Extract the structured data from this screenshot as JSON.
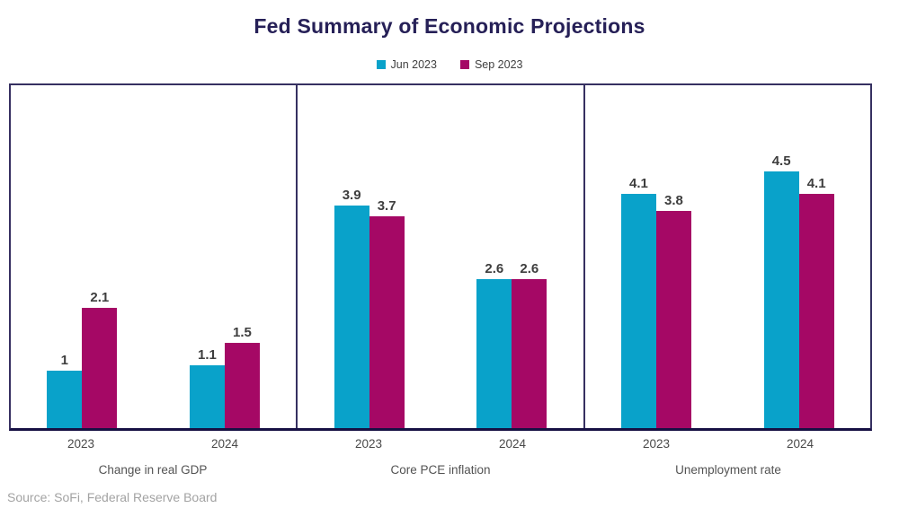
{
  "title": "Fed Summary of Economic Projections",
  "source": "Source: SoFi, Federal Reserve Board",
  "colors": {
    "series_jun": "#09a2ca",
    "series_sep": "#a50865",
    "border_navy": "#363061",
    "axis_navy": "#161043",
    "title_navy": "#262057",
    "label_gray": "#3e3e3e"
  },
  "legend": [
    {
      "label": "Jun 2023",
      "color": "#09a2ca"
    },
    {
      "label": "Sep 2023",
      "color": "#a50865"
    }
  ],
  "chart_data": {
    "type": "bar",
    "grouped": true,
    "grid": false,
    "legend_position": "top",
    "ylim": [
      0,
      6
    ],
    "group_centers_pct": [
      25,
      75
    ],
    "panels": [
      {
        "title": "Change in real GDP",
        "categories": [
          "2023",
          "2024"
        ],
        "series": [
          {
            "name": "Jun 2023",
            "values": [
              1,
              1.1
            ],
            "labels": [
              "1",
              "1.1"
            ]
          },
          {
            "name": "Sep 2023",
            "values": [
              2.1,
              1.5
            ],
            "labels": [
              "2.1",
              "1.5"
            ]
          }
        ]
      },
      {
        "title": "Core PCE inflation",
        "categories": [
          "2023",
          "2024"
        ],
        "series": [
          {
            "name": "Jun 2023",
            "values": [
              3.9,
              2.6
            ],
            "labels": [
              "3.9",
              "2.6"
            ]
          },
          {
            "name": "Sep 2023",
            "values": [
              3.7,
              2.6
            ],
            "labels": [
              "3.7",
              "2.6"
            ]
          }
        ]
      },
      {
        "title": "Unemployment rate",
        "categories": [
          "2023",
          "2024"
        ],
        "series": [
          {
            "name": "Jun 2023",
            "values": [
              4.1,
              4.5
            ],
            "labels": [
              "4.1",
              "4.5"
            ]
          },
          {
            "name": "Sep 2023",
            "values": [
              3.8,
              4.1
            ],
            "labels": [
              "3.8",
              "4.1"
            ]
          }
        ]
      }
    ]
  }
}
